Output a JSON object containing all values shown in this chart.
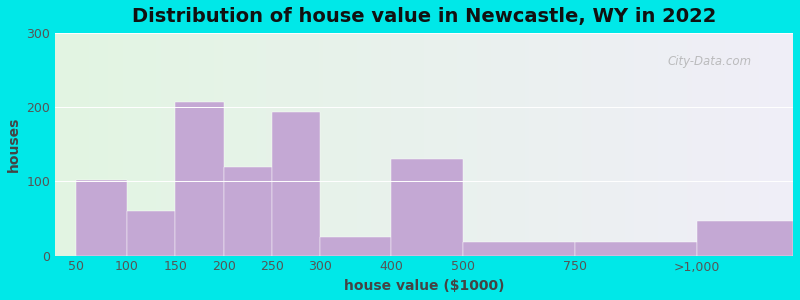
{
  "title": "Distribution of house value in Newcastle, WY in 2022",
  "xlabel": "house value ($1000)",
  "ylabel": "houses",
  "bar_color": "#c4a8d4",
  "background_outer": "#00e8e8",
  "background_left": "#e2f5e2",
  "background_right": "#f0eef8",
  "ylim": [
    0,
    300
  ],
  "yticks": [
    0,
    100,
    200,
    300
  ],
  "categories": [
    "50",
    "100",
    "150",
    "200",
    "250",
    "300",
    "400",
    "500",
    "750",
    ">1,000"
  ],
  "values": [
    102,
    60,
    207,
    120,
    194,
    25,
    130,
    18,
    18,
    47
  ],
  "title_fontsize": 14,
  "label_fontsize": 10,
  "tick_fontsize": 9,
  "watermark": "City-Data.com"
}
